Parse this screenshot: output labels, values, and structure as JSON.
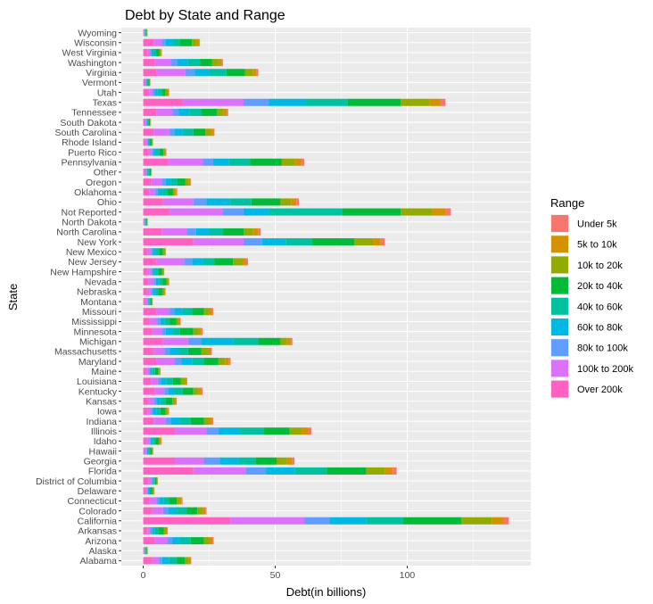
{
  "chart_data": {
    "type": "bar",
    "orientation": "horizontal",
    "stacked": true,
    "title": "Debt by State and Range",
    "xlabel": "Debt(in billions)",
    "ylabel": "State",
    "xlim": [
      0,
      147
    ],
    "x_ticks": [
      0,
      50,
      100
    ],
    "grid": true,
    "legend_placement": "right",
    "legend_title": "Range",
    "categories": [
      "Alabama",
      "Alaska",
      "Arizona",
      "Arkansas",
      "California",
      "Colorado",
      "Connecticut",
      "Delaware",
      "District of Columbia",
      "Florida",
      "Georgia",
      "Hawaii",
      "Idaho",
      "Illinois",
      "Indiana",
      "Iowa",
      "Kansas",
      "Kentucky",
      "Louisiana",
      "Maine",
      "Maryland",
      "Massachusetts",
      "Michigan",
      "Minnesota",
      "Mississippi",
      "Missouri",
      "Montana",
      "Nebraska",
      "Nevada",
      "New Hampshire",
      "New Jersey",
      "New Mexico",
      "New York",
      "North Carolina",
      "North Dakota",
      "Not Reported",
      "Ohio",
      "Oklahoma",
      "Oregon",
      "Other",
      "Pennsylvania",
      "Puerto Rico",
      "Rhode Island",
      "South Carolina",
      "South Dakota",
      "Tennessee",
      "Texas",
      "Utah",
      "Vermont",
      "Virginia",
      "Washington",
      "West Virginia",
      "Wisconsin",
      "Wyoming"
    ],
    "series": [
      {
        "name": "Over 200k",
        "color": "#FF61C3",
        "values": [
          3.5,
          0.3,
          4.5,
          1.5,
          33,
          3.5,
          2.5,
          0.8,
          2,
          19,
          12,
          0.5,
          1,
          12,
          4,
          1.5,
          2,
          4.5,
          3,
          1,
          5,
          4,
          7.5,
          3.5,
          2.5,
          5,
          0.8,
          1.5,
          2,
          1.5,
          5,
          1.5,
          19,
          7,
          0.3,
          10,
          7.5,
          2,
          3,
          0.5,
          9.5,
          2,
          0.8,
          4,
          0.5,
          5,
          15,
          2,
          0.5,
          5,
          4.5,
          1.5,
          4,
          0.3
        ]
      },
      {
        "name": "100k to 200k",
        "color": "#DB72FB",
        "values": [
          2.5,
          0.2,
          4.5,
          1.2,
          28,
          4,
          2.5,
          0.7,
          1.2,
          20,
          11,
          0.7,
          1.3,
          12,
          4.5,
          1.5,
          2,
          3.5,
          2.5,
          1.2,
          7,
          4,
          9.5,
          3.5,
          2.8,
          5,
          0.8,
          1.5,
          2,
          1.5,
          10.5,
          1.5,
          19,
          9.5,
          0.3,
          20,
          11.5,
          2.5,
          4,
          0.7,
          13,
          1.3,
          0.7,
          6,
          0.6,
          6,
          23,
          1.5,
          0.5,
          11,
          6,
          1.2,
          3,
          0.2
        ]
      },
      {
        "name": "80k to 100k",
        "color": "#619CFF",
        "values": [
          1.2,
          0.1,
          2,
          0.6,
          9.5,
          2,
          1,
          0.3,
          0.4,
          7.5,
          6,
          0.3,
          0.5,
          4.5,
          2,
          0.7,
          1,
          1.5,
          1.2,
          0.5,
          2.5,
          2,
          5,
          1.5,
          1.2,
          2,
          0.3,
          0.7,
          0.8,
          0.6,
          3,
          0.7,
          7,
          3.5,
          0.1,
          8,
          5,
          1,
          1.5,
          0.3,
          4,
          0.6,
          0.3,
          2,
          0.3,
          2.5,
          9.5,
          0.8,
          0.2,
          3.5,
          2.5,
          0.5,
          1.5,
          0.1
        ]
      },
      {
        "name": "60k to 80k",
        "color": "#00B9E3",
        "values": [
          2.5,
          0.2,
          3,
          1,
          14,
          3,
          1.7,
          0.4,
          0.4,
          11,
          7,
          0.5,
          0.8,
          8,
          3.5,
          1.3,
          1.5,
          2.5,
          2,
          0.8,
          4,
          3.5,
          12,
          2.5,
          1.5,
          3,
          0.4,
          1,
          1.2,
          1,
          4,
          1,
          9,
          5,
          0.2,
          9.5,
          9,
          1.8,
          2,
          0.4,
          6,
          1,
          0.4,
          3,
          0.3,
          4,
          14,
          1.2,
          0.3,
          5.5,
          4,
          0.7,
          2.5,
          0.2
        ]
      },
      {
        "name": "40k to 60k",
        "color": "#00C19F",
        "values": [
          3,
          0.3,
          4,
          1.5,
          14,
          4,
          2,
          0.5,
          0.5,
          12,
          6.5,
          0.6,
          1,
          9,
          4,
          1.5,
          2,
          3,
          2.5,
          1,
          4.5,
          3.5,
          9.5,
          3,
          2,
          3.5,
          0.5,
          1.2,
          1.3,
          1.2,
          4.5,
          1.3,
          10,
          5,
          0.3,
          28,
          8,
          2,
          2.5,
          0.5,
          8,
          1.3,
          0.5,
          4,
          0.4,
          4.5,
          16,
          1.5,
          0.4,
          6.5,
          4.5,
          1,
          3,
          0.3
        ]
      },
      {
        "name": "20k to 40k",
        "color": "#00BA38",
        "values": [
          3,
          0.3,
          5,
          2,
          22,
          4,
          3,
          0.8,
          0.6,
          15,
          8,
          0.7,
          1.3,
          10,
          5,
          2,
          2.5,
          4,
          3,
          1.2,
          5.5,
          5,
          8.5,
          5,
          2.5,
          4.5,
          0.5,
          1.5,
          1.5,
          1.3,
          7,
          1.5,
          16,
          8,
          0.3,
          22,
          11,
          2,
          3,
          0.5,
          12,
          1.5,
          0.6,
          4.5,
          0.5,
          6,
          20,
          1.5,
          0.5,
          7,
          4.5,
          1.2,
          4.5,
          0.3
        ]
      },
      {
        "name": "10k to 20k",
        "color": "#93AA00",
        "values": [
          1.5,
          0.2,
          2,
          0.8,
          11.5,
          2,
          1.2,
          0.5,
          0.3,
          7,
          4,
          0.3,
          0.6,
          4.5,
          2,
          0.7,
          1,
          2,
          1.5,
          0.5,
          2.5,
          2.5,
          2.5,
          2,
          1,
          2,
          0.2,
          0.6,
          0.6,
          0.5,
          3.5,
          0.6,
          7,
          3.5,
          0.1,
          12,
          4,
          0.8,
          1.2,
          0.2,
          5,
          0.6,
          0.3,
          2,
          0.2,
          2.5,
          11,
          0.8,
          0.2,
          3,
          2.5,
          0.6,
          1.8,
          0.1
        ]
      },
      {
        "name": "5k to 10k",
        "color": "#D39200",
        "values": [
          0.7,
          0.1,
          1.2,
          0.5,
          4.5,
          1,
          0.7,
          0.2,
          0.1,
          3,
          2,
          0.2,
          0.3,
          2.5,
          1,
          0.4,
          0.5,
          1,
          0.7,
          0.3,
          1.5,
          1,
          1.3,
          1,
          0.5,
          1,
          0.1,
          0.3,
          0.3,
          0.3,
          1.5,
          0.3,
          3,
          2,
          0.1,
          5,
          2,
          0.5,
          0.6,
          0.1,
          2.5,
          0.3,
          0.1,
          1,
          0.1,
          1.2,
          4,
          0.4,
          0.1,
          1.5,
          1.2,
          0.3,
          0.9,
          0.1
        ]
      },
      {
        "name": "Under 5k",
        "color": "#F8766D",
        "values": [
          0.3,
          0.05,
          0.5,
          0.2,
          2,
          0.5,
          0.3,
          0.1,
          0.05,
          1.5,
          0.8,
          0.1,
          0.2,
          1.2,
          0.5,
          0.2,
          0.2,
          0.5,
          0.3,
          0.1,
          0.6,
          0.5,
          0.7,
          0.5,
          0.2,
          0.5,
          0.05,
          0.2,
          0.2,
          0.1,
          0.7,
          0.2,
          1.5,
          1,
          0.05,
          2,
          1,
          0.3,
          0.3,
          0.05,
          1,
          0.2,
          0.05,
          0.5,
          0.05,
          0.5,
          2,
          0.2,
          0.05,
          0.6,
          0.5,
          0.1,
          0.3,
          0.05
        ]
      }
    ],
    "legend_order": [
      "Under 5k",
      "5k to 10k",
      "10k to 20k",
      "20k to 40k",
      "40k to 60k",
      "60k to 80k",
      "80k to 100k",
      "100k to 200k",
      "Over 200k"
    ]
  }
}
